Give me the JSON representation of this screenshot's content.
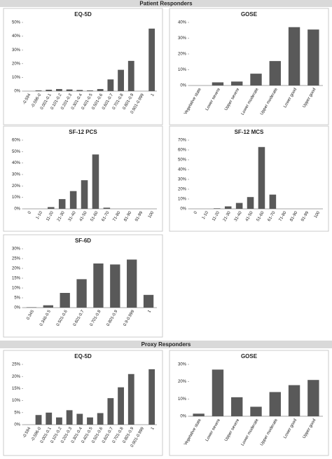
{
  "headers": [
    "Patient Responders",
    "Proxy Responders"
  ],
  "chart_data": [
    {
      "type": "bar",
      "title": "EQ-5D",
      "color": "#595959",
      "grid": false,
      "categories": [
        "-0.594",
        "-0.596-0",
        "0.001-0.1",
        "0.101-0.2",
        "0.201-0.3",
        "0.301-0.4",
        "0.401-0.5",
        "0.501-0.6",
        "0.601-0.7",
        "0.701-0.8",
        "0.801-0.9",
        "0.901-0.999",
        "1"
      ],
      "values": [
        0,
        0.5,
        1,
        1.5,
        1.2,
        0.8,
        0.5,
        1.5,
        8.5,
        15.5,
        22,
        0,
        45.5
      ],
      "ylim": [
        0,
        50
      ],
      "yticks": [
        {
          "value": 0,
          "label": "0%"
        },
        {
          "value": 10,
          "label": "10%"
        },
        {
          "value": 20,
          "label": "20%"
        },
        {
          "value": 30,
          "label": "30%"
        },
        {
          "value": 40,
          "label": "40%"
        },
        {
          "value": 50,
          "label": "50%"
        }
      ]
    },
    {
      "type": "bar",
      "title": "GOSE",
      "color": "#595959",
      "grid": false,
      "categories": [
        "Vegetative state",
        "Lower severe",
        "Upper severe",
        "Lower moderate",
        "Upper moderate",
        "Lower good",
        "Upper good"
      ],
      "values": [
        0,
        2,
        2.5,
        7.5,
        15.5,
        37,
        35.5
      ],
      "ylim": [
        0,
        40
      ],
      "yticks": [
        {
          "value": 0,
          "label": "0%"
        },
        {
          "value": 10,
          "label": "10%"
        },
        {
          "value": 20,
          "label": "20%"
        },
        {
          "value": 30,
          "label": "30%"
        },
        {
          "value": 40,
          "label": "40%"
        }
      ]
    },
    {
      "type": "bar",
      "title": "SF-12 PCS",
      "color": "#595959",
      "grid": false,
      "categories": [
        "0",
        "1-10",
        "11-20",
        "21-30",
        "31-40",
        "41-50",
        "51-60",
        "61-70",
        "71-80",
        "81-90",
        "91-99",
        "100"
      ],
      "values": [
        0,
        0,
        1.5,
        8.5,
        15.5,
        25,
        47.5,
        1,
        0,
        0,
        0,
        0
      ],
      "ylim": [
        0,
        60
      ],
      "yticks": [
        {
          "value": 0,
          "label": "0%"
        },
        {
          "value": 10,
          "label": "10%"
        },
        {
          "value": 20,
          "label": "20%"
        },
        {
          "value": 30,
          "label": "30%"
        },
        {
          "value": 40,
          "label": "40%"
        },
        {
          "value": 50,
          "label": "50%"
        },
        {
          "value": 60,
          "label": "60%"
        }
      ]
    },
    {
      "type": "bar",
      "title": "SF-12 MCS",
      "color": "#595959",
      "grid": false,
      "categories": [
        "0",
        "1-10",
        "11-20",
        "21-30",
        "31-40",
        "41-50",
        "51-60",
        "61-70",
        "71-80",
        "81-90",
        "91-99",
        "100"
      ],
      "values": [
        0,
        0,
        0.5,
        2.5,
        6,
        12,
        63,
        14.5,
        0,
        0,
        0,
        0
      ],
      "ylim": [
        0,
        70
      ],
      "yticks": [
        {
          "value": 0,
          "label": "0%"
        },
        {
          "value": 10,
          "label": "10%"
        },
        {
          "value": 20,
          "label": "20%"
        },
        {
          "value": 30,
          "label": "30%"
        },
        {
          "value": 40,
          "label": "40%"
        },
        {
          "value": 50,
          "label": "50%"
        },
        {
          "value": 60,
          "label": "60%"
        },
        {
          "value": 70,
          "label": "70%"
        }
      ]
    },
    {
      "type": "bar",
      "title": "SF-6D",
      "color": "#595959",
      "grid": false,
      "categories": [
        "0.345",
        "0.346-0.5",
        "0.501-0.6",
        "0.601-0.7",
        "0.701-0.8",
        "0.801-0.9",
        "0.9-0.999",
        "1"
      ],
      "values": [
        0.2,
        1.2,
        7.5,
        14.5,
        22.5,
        22,
        24.5,
        6.5
      ],
      "ylim": [
        0,
        30
      ],
      "yticks": [
        {
          "value": 0,
          "label": "0%"
        },
        {
          "value": 5,
          "label": "5%"
        },
        {
          "value": 10,
          "label": "10%"
        },
        {
          "value": 15,
          "label": "15%"
        },
        {
          "value": 20,
          "label": "20%"
        },
        {
          "value": 25,
          "label": "25%"
        },
        {
          "value": 30,
          "label": "30%"
        }
      ]
    },
    {
      "type": "bar",
      "title": "EQ-5D",
      "color": "#595959",
      "grid": false,
      "categories": [
        "-0.594",
        "-0.596-0",
        "0.001-0.1",
        "0.101-0.2",
        "0.201-0.3",
        "0.301-0.4",
        "0.401-0.5",
        "0.501-0.6",
        "0.601-0.7",
        "0.701-0.8",
        "0.801-0.9",
        "0.901-0.999",
        "1"
      ],
      "values": [
        0,
        4,
        5,
        3,
        6,
        4.5,
        3,
        4.8,
        11,
        15.5,
        21,
        0,
        23
      ],
      "ylim": [
        0,
        25
      ],
      "yticks": [
        {
          "value": 0,
          "label": "0%"
        },
        {
          "value": 5,
          "label": "5%"
        },
        {
          "value": 10,
          "label": "10%"
        },
        {
          "value": 15,
          "label": "15%"
        },
        {
          "value": 20,
          "label": "20%"
        },
        {
          "value": 25,
          "label": "25%"
        }
      ]
    },
    {
      "type": "bar",
      "title": "GOSE",
      "color": "#595959",
      "grid": false,
      "categories": [
        "Vegetative state",
        "Lower severe",
        "Upper severe",
        "Lower moderate",
        "Upper moderate",
        "Lower good",
        "Upper good"
      ],
      "values": [
        1.5,
        27,
        11,
        5.5,
        14,
        18,
        21
      ],
      "ylim": [
        0,
        30
      ],
      "yticks": [
        {
          "value": 0,
          "label": "0%"
        },
        {
          "value": 10,
          "label": "10%"
        },
        {
          "value": 20,
          "label": "20%"
        },
        {
          "value": 30,
          "label": "30%"
        }
      ]
    }
  ]
}
